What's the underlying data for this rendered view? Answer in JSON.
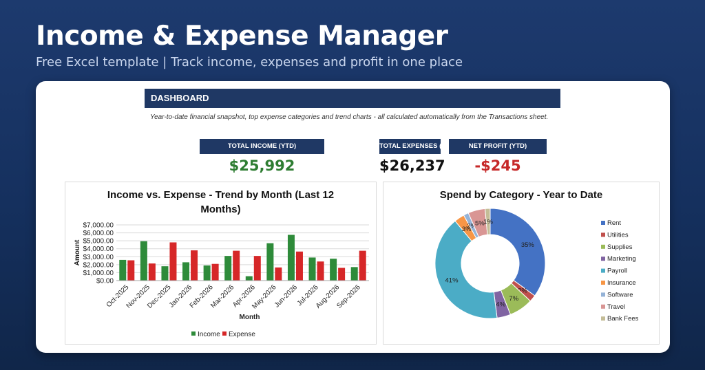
{
  "hero": {
    "title": "Income & Expense Manager",
    "subtitle": "Free Excel template  |  Track income, expenses and profit in one place"
  },
  "dashboard": {
    "header": "DASHBOARD",
    "description": "Year-to-date financial snapshot, top expense categories and trend charts - all calculated automatically from the Transactions sheet."
  },
  "kpis": [
    {
      "label": "TOTAL INCOME (YTD)",
      "value": "$25,992",
      "color": "#2e7d32"
    },
    {
      "label": "TOTAL EXPENSES (YTD)",
      "value": "$26,237",
      "color": "#111111"
    },
    {
      "label": "NET PROFIT (YTD)",
      "value": "-$245",
      "color": "#c62828"
    }
  ],
  "colors": {
    "navy": "#1f3864",
    "income_bar": "#2e8b3a",
    "expense_bar": "#d62728"
  },
  "chart_data": [
    {
      "type": "bar",
      "title": "Income vs. Expense - Trend by Month (Last 12 Months)",
      "xlabel": "Month",
      "ylabel": "Amount",
      "ylim": [
        0,
        7000
      ],
      "yticks": [
        "$0.00",
        "$1,000.00",
        "$2,000.00",
        "$3,000.00",
        "$4,000.00",
        "$5,000.00",
        "$6,000.00",
        "$7,000.00"
      ],
      "categories": [
        "Oct-2025",
        "Nov-2025",
        "Dec-2025",
        "Jan-2026",
        "Feb-2026",
        "Mar-2026",
        "Apr-2026",
        "May-2026",
        "Jun-2026",
        "Jul-2026",
        "Aug-2026",
        "Sep-2026"
      ],
      "series": [
        {
          "name": "Income",
          "color": "#2e8b3a",
          "values": [
            2600,
            4950,
            1800,
            2300,
            1900,
            3100,
            550,
            4700,
            5750,
            2900,
            2750,
            1700
          ]
        },
        {
          "name": "Expense",
          "color": "#d62728",
          "values": [
            2550,
            2150,
            4800,
            3800,
            2100,
            3750,
            3100,
            1650,
            3650,
            2400,
            1600,
            3750
          ]
        }
      ],
      "grid": true,
      "legend": "bottom"
    },
    {
      "type": "pie",
      "donut": true,
      "title": "Spend by Category - Year to Date",
      "legend": "right",
      "slices": [
        {
          "label": "Rent",
          "value": 35,
          "text": "35%",
          "color": "#4472c4"
        },
        {
          "label": "Utilities",
          "value": 2,
          "text": "2%",
          "color": "#c0504d"
        },
        {
          "label": "Supplies",
          "value": 7,
          "text": "7%",
          "color": "#9bbb59"
        },
        {
          "label": "Marketing",
          "value": 4,
          "text": "4%",
          "color": "#8064a2"
        },
        {
          "label": "Payroll",
          "value": 41,
          "text": "41%",
          "color": "#4bacc6"
        },
        {
          "label": "Insurance",
          "value": 3,
          "text": "3%",
          "color": "#f79646"
        },
        {
          "label": "Software",
          "value": 1.5,
          "text": "2%",
          "color": "#95b3d7"
        },
        {
          "label": "Travel",
          "value": 5,
          "text": "5%",
          "color": "#d99694"
        },
        {
          "label": "Bank Fees",
          "value": 1.5,
          "text": "1%",
          "color": "#c4bd97"
        }
      ]
    }
  ]
}
